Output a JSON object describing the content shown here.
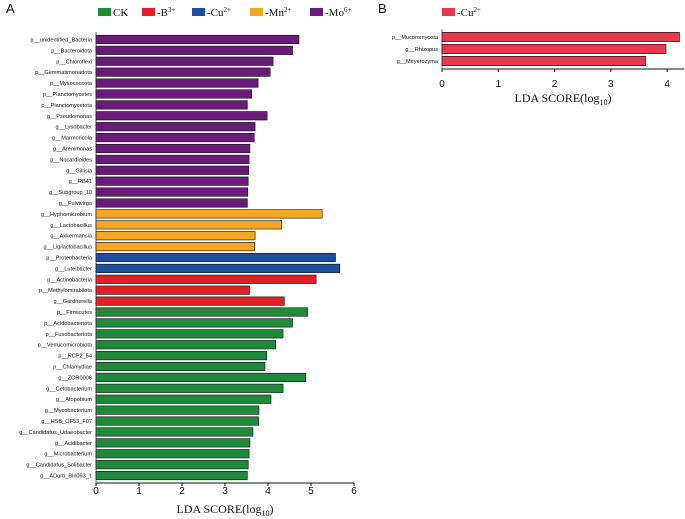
{
  "chart_data": [
    {
      "panel_label": "A",
      "type": "bar",
      "orientation": "horizontal",
      "xlabel": "LDA SCORE(log",
      "xlabel_sub": "10",
      "xlabel_close": ")",
      "xlim": [
        0,
        6
      ],
      "xticks": [
        "0",
        "1",
        "2",
        "3",
        "4",
        "5",
        "6"
      ],
      "legend": [
        {
          "key": "CK",
          "text": "CK",
          "sup": "",
          "color": "#1e8a3a"
        },
        {
          "key": "B",
          "text": "-B",
          "sup": "3+",
          "color": "#e31e24"
        },
        {
          "key": "Cu",
          "text": "-Cu",
          "sup": "2+",
          "color": "#1f4e9c"
        },
        {
          "key": "Mn",
          "text": "-Mn",
          "sup": "2+",
          "color": "#f5a623"
        },
        {
          "key": "Mo",
          "text": "-Mo",
          "sup": "6+",
          "color": "#6a1b7a"
        }
      ],
      "bars": [
        {
          "label": "p__unidentified_Bacteria",
          "value": 4.72,
          "group": "Mo"
        },
        {
          "label": "p__Bacteroidota",
          "value": 4.57,
          "group": "Mo"
        },
        {
          "label": "p__Chloroflexi",
          "value": 4.12,
          "group": "Mo"
        },
        {
          "label": "p__Gemmatimonadota",
          "value": 4.05,
          "group": "Mo"
        },
        {
          "label": "p__Myxococcota",
          "value": 3.77,
          "group": "Mo"
        },
        {
          "label": "p__Planctomycetes",
          "value": 3.62,
          "group": "Mo"
        },
        {
          "label": "p__Planctomycetota",
          "value": 3.52,
          "group": "Mo"
        },
        {
          "label": "g__Pseudomonas",
          "value": 3.98,
          "group": "Mo"
        },
        {
          "label": "g__Lysobacter",
          "value": 3.7,
          "group": "Mo"
        },
        {
          "label": "g__Marmoricola",
          "value": 3.68,
          "group": "Mo"
        },
        {
          "label": "g__Arenimonas",
          "value": 3.58,
          "group": "Mo"
        },
        {
          "label": "g__Nocardioides",
          "value": 3.56,
          "group": "Mo"
        },
        {
          "label": "g__Gillisia",
          "value": 3.55,
          "group": "Mo"
        },
        {
          "label": "g__RB41",
          "value": 3.54,
          "group": "Mo"
        },
        {
          "label": "g__Subgroup_10",
          "value": 3.53,
          "group": "Mo"
        },
        {
          "label": "g__Fulvivirga",
          "value": 3.52,
          "group": "Mo"
        },
        {
          "label": "g__Hyphomicrobium",
          "value": 5.26,
          "group": "Mn"
        },
        {
          "label": "g__Lactobacillus",
          "value": 4.32,
          "group": "Mn"
        },
        {
          "label": "g__Akkermansia",
          "value": 3.7,
          "group": "Mn"
        },
        {
          "label": "g__Ligilactobacillus",
          "value": 3.69,
          "group": "Mn"
        },
        {
          "label": "p__Proteobacteria",
          "value": 5.57,
          "group": "Cu"
        },
        {
          "label": "g__Luteibacter",
          "value": 5.67,
          "group": "Cu"
        },
        {
          "label": "p__Actinobacteria",
          "value": 5.12,
          "group": "B"
        },
        {
          "label": "p__Methylomirabilota",
          "value": 3.57,
          "group": "B"
        },
        {
          "label": "g__Gardnerella",
          "value": 4.38,
          "group": "B"
        },
        {
          "label": "p__Firmicutes",
          "value": 4.92,
          "group": "CK"
        },
        {
          "label": "p__Acidobacteriota",
          "value": 4.57,
          "group": "CK"
        },
        {
          "label": "p__Fusobacteriota",
          "value": 4.35,
          "group": "CK"
        },
        {
          "label": "p__Verrucomicrobiota",
          "value": 4.18,
          "group": "CK"
        },
        {
          "label": "p__RCP2_54",
          "value": 3.97,
          "group": "CK"
        },
        {
          "label": "p__Chlamydiae",
          "value": 3.93,
          "group": "CK"
        },
        {
          "label": "g__ZOR0006",
          "value": 4.88,
          "group": "CK"
        },
        {
          "label": "g__Cetobacterium",
          "value": 4.35,
          "group": "CK"
        },
        {
          "label": "g__Atopobium",
          "value": 4.07,
          "group": "CK"
        },
        {
          "label": "g__Mycobacterium",
          "value": 3.79,
          "group": "CK"
        },
        {
          "label": "g__HSB_OF53_F07",
          "value": 3.78,
          "group": "CK"
        },
        {
          "label": "g__Candidatus_Udaeobacter",
          "value": 3.65,
          "group": "CK"
        },
        {
          "label": "g__Acidibacter",
          "value": 3.58,
          "group": "CK"
        },
        {
          "label": "g__Microbacterium",
          "value": 3.56,
          "group": "CK"
        },
        {
          "label": "g__Candidatus_Solibacter",
          "value": 3.54,
          "group": "CK"
        },
        {
          "label": "g__ADurb_Bin063_1",
          "value": 3.52,
          "group": "CK"
        }
      ]
    },
    {
      "panel_label": "B",
      "type": "bar",
      "orientation": "horizontal",
      "xlabel": "LDA SCORE(log",
      "xlabel_sub": "10",
      "xlabel_close": ")",
      "xlim": [
        0,
        4.3
      ],
      "xticks": [
        "0",
        "1",
        "2",
        "3",
        "4"
      ],
      "legend": [
        {
          "key": "Cu",
          "text": "-Cu",
          "sup": "2+",
          "color": "#e8384f"
        }
      ],
      "bars": [
        {
          "label": "p__Mucoromycota",
          "value": 4.22,
          "group": "Cu"
        },
        {
          "label": "g__Rhizopus",
          "value": 3.98,
          "group": "Cu"
        },
        {
          "label": "g__Meyerozyma",
          "value": 3.62,
          "group": "Cu"
        }
      ]
    }
  ]
}
